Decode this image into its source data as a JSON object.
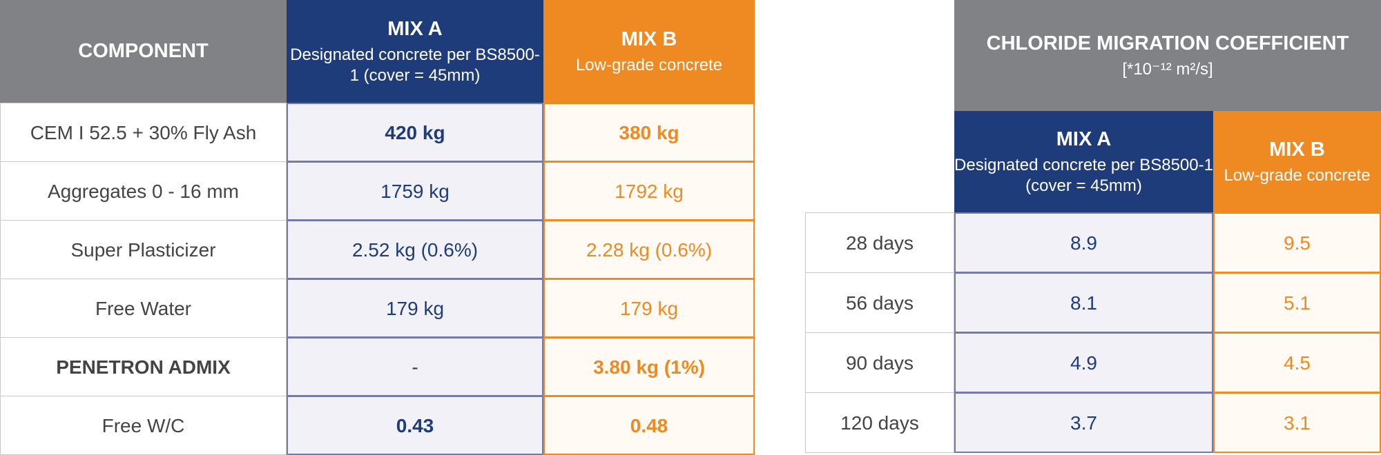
{
  "mix_table": {
    "header": {
      "component": "COMPONENT",
      "mix_a": {
        "title": "MIX A",
        "subtitle": "Designated concrete per BS8500-1 (cover = 45mm)"
      },
      "mix_b": {
        "title": "MIX B",
        "subtitle": "Low-grade concrete"
      }
    },
    "rows": [
      [
        "CEM I 52.5 + 30% Fly Ash",
        "420 kg",
        "380 kg"
      ],
      [
        "Aggregates 0 - 16 mm",
        "1759 kg",
        "1792 kg"
      ],
      [
        "Super Plasticizer",
        "2.52 kg (0.6%)",
        "2.28 kg (0.6%)"
      ],
      [
        "Free Water",
        "179 kg",
        "179 kg"
      ],
      [
        "PENETRON ADMIX",
        "-",
        "3.80 kg (1%)"
      ],
      [
        "Free W/C",
        "0.43",
        "0.48"
      ]
    ]
  },
  "chloride_table": {
    "title": "CHLORIDE MIGRATION COEFFICIENT",
    "unit": "[*10⁻¹² m²/s]",
    "mix_a": {
      "title": "MIX A",
      "subtitle": "Designated concrete per BS8500-1 (cover = 45mm)"
    },
    "mix_b": {
      "title": "MIX B",
      "subtitle": "Low-grade concrete"
    },
    "rows": [
      [
        "28 days",
        "8.9",
        "9.5"
      ],
      [
        "56 days",
        "8.1",
        "5.1"
      ],
      [
        "90 days",
        "4.9",
        "4.5"
      ],
      [
        "120 days",
        "3.7",
        "3.1"
      ]
    ]
  }
}
